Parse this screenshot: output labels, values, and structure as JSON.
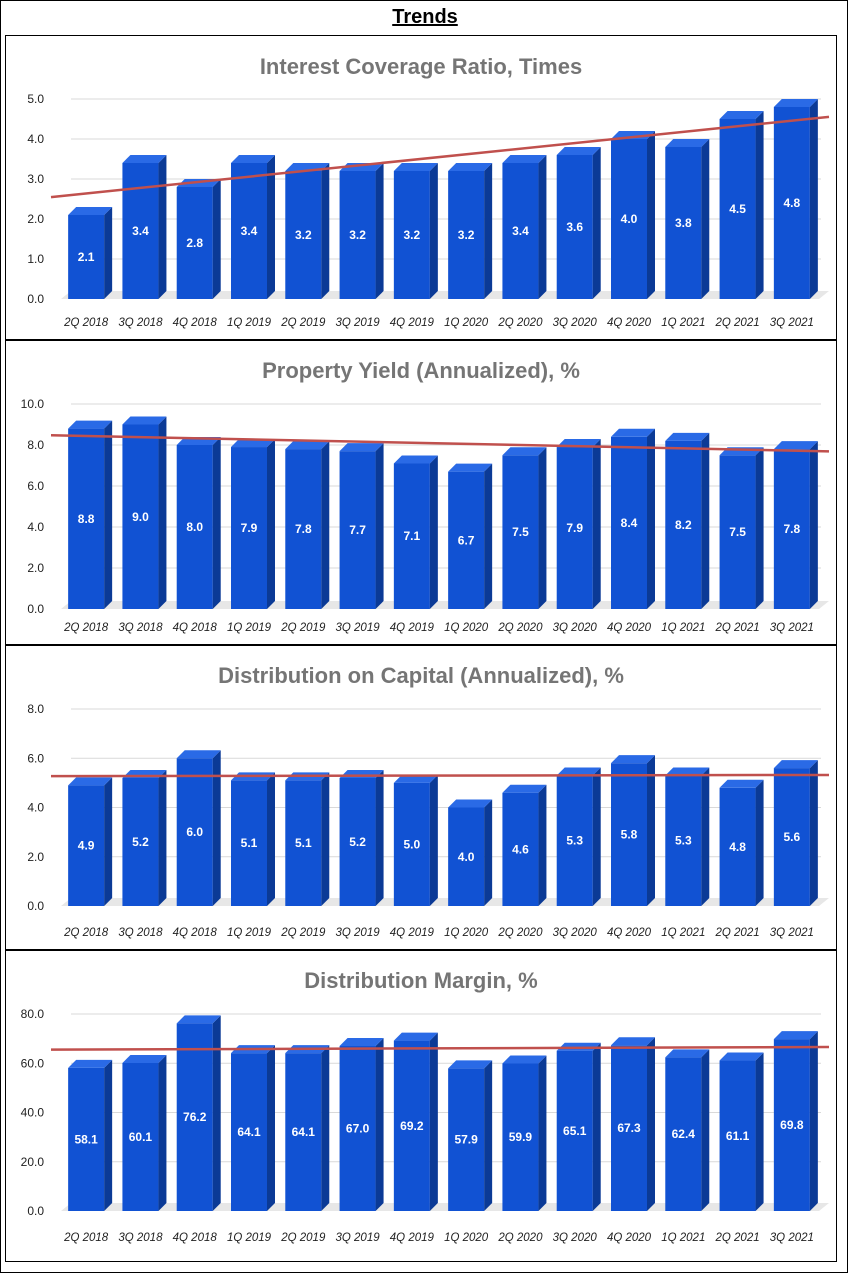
{
  "page_title": "Trends",
  "colors": {
    "bar_front": "#1152d3",
    "bar_side": "#0b3a96",
    "bar_top": "#2a6ae6",
    "trend": "#c0504d",
    "title_text": "#757575",
    "label_text": "#ffffff",
    "grid": "#d9d9d9",
    "floor": "#e7e7e7"
  },
  "chart_data": [
    {
      "type": "bar",
      "title": "Interest Coverage Ratio, Times",
      "categories": [
        "2Q 2018",
        "3Q 2018",
        "4Q 2018",
        "1Q 2019",
        "2Q 2019",
        "3Q 2019",
        "4Q 2019",
        "1Q 2020",
        "2Q 2020",
        "3Q 2020",
        "4Q 2020",
        "1Q 2021",
        "2Q 2021",
        "3Q 2021"
      ],
      "values": [
        2.1,
        3.4,
        2.8,
        3.4,
        3.2,
        3.2,
        3.2,
        3.2,
        3.4,
        3.6,
        4.0,
        3.8,
        4.5,
        4.8
      ],
      "value_labels": [
        "2.1",
        "3.4",
        "2.8",
        "3.4",
        "3.2",
        "3.2",
        "3.2",
        "3.2",
        "3.4",
        "3.6",
        "4.0",
        "3.8",
        "4.5",
        "4.8"
      ],
      "yticks": [
        "0.0",
        "1.0",
        "2.0",
        "3.0",
        "4.0",
        "5.0"
      ],
      "ylim": [
        0,
        5
      ],
      "trendline": true,
      "xlabel": "",
      "ylabel": ""
    },
    {
      "type": "bar",
      "title": "Property Yield (Annualized), %",
      "categories": [
        "2Q 2018",
        "3Q 2018",
        "4Q 2018",
        "1Q 2019",
        "2Q 2019",
        "3Q 2019",
        "4Q 2019",
        "1Q 2020",
        "2Q 2020",
        "3Q 2020",
        "4Q 2020",
        "1Q 2021",
        "2Q 2021",
        "3Q 2021"
      ],
      "values": [
        8.8,
        9.0,
        8.0,
        7.9,
        7.8,
        7.7,
        7.1,
        6.7,
        7.5,
        7.9,
        8.4,
        8.2,
        7.5,
        7.8
      ],
      "value_labels": [
        "8.8",
        "9.0",
        "8.0",
        "7.9",
        "7.8",
        "7.7",
        "7.1",
        "6.7",
        "7.5",
        "7.9",
        "8.4",
        "8.2",
        "7.5",
        "7.8"
      ],
      "yticks": [
        "0.0",
        "2.0",
        "4.0",
        "6.0",
        "8.0",
        "10.0"
      ],
      "ylim": [
        0,
        10
      ],
      "trendline": true,
      "xlabel": "",
      "ylabel": ""
    },
    {
      "type": "bar",
      "title": "Distribution on Capital (Annualized), %",
      "categories": [
        "2Q 2018",
        "3Q 2018",
        "4Q 2018",
        "1Q 2019",
        "2Q 2019",
        "3Q 2019",
        "4Q 2019",
        "1Q 2020",
        "2Q 2020",
        "3Q 2020",
        "4Q 2020",
        "1Q 2021",
        "2Q 2021",
        "3Q 2021"
      ],
      "values": [
        4.9,
        5.2,
        6.0,
        5.1,
        5.1,
        5.2,
        5.0,
        4.0,
        4.6,
        5.3,
        5.8,
        5.3,
        4.8,
        5.6
      ],
      "value_labels": [
        "4.9",
        "5.2",
        "6.0",
        "5.1",
        "5.1",
        "5.2",
        "5.0",
        "4.0",
        "4.6",
        "5.3",
        "5.8",
        "5.3",
        "4.8",
        "5.6"
      ],
      "yticks": [
        "0.0",
        "2.0",
        "4.0",
        "6.0",
        "8.0"
      ],
      "ylim": [
        0,
        8
      ],
      "trendline": true,
      "xlabel": "",
      "ylabel": ""
    },
    {
      "type": "bar",
      "title": "Distribution Margin, %",
      "categories": [
        "2Q 2018",
        "3Q 2018",
        "4Q 2018",
        "1Q 2019",
        "2Q 2019",
        "3Q 2019",
        "4Q 2019",
        "1Q 2020",
        "2Q 2020",
        "3Q 2020",
        "4Q 2020",
        "1Q 2021",
        "2Q 2021",
        "3Q 2021"
      ],
      "values": [
        58.1,
        60.1,
        76.2,
        64.1,
        64.1,
        67.0,
        69.2,
        57.9,
        59.9,
        65.1,
        67.3,
        62.4,
        61.1,
        69.8
      ],
      "value_labels": [
        "58.1",
        "60.1",
        "76.2",
        "64.1",
        "64.1",
        "67.0",
        "69.2",
        "57.9",
        "59.9",
        "65.1",
        "67.3",
        "62.4",
        "61.1",
        "69.8"
      ],
      "yticks": [
        "0.0",
        "20.0",
        "40.0",
        "60.0",
        "80.0"
      ],
      "ylim": [
        0,
        80
      ],
      "trendline": true,
      "xlabel": "",
      "ylabel": ""
    }
  ]
}
